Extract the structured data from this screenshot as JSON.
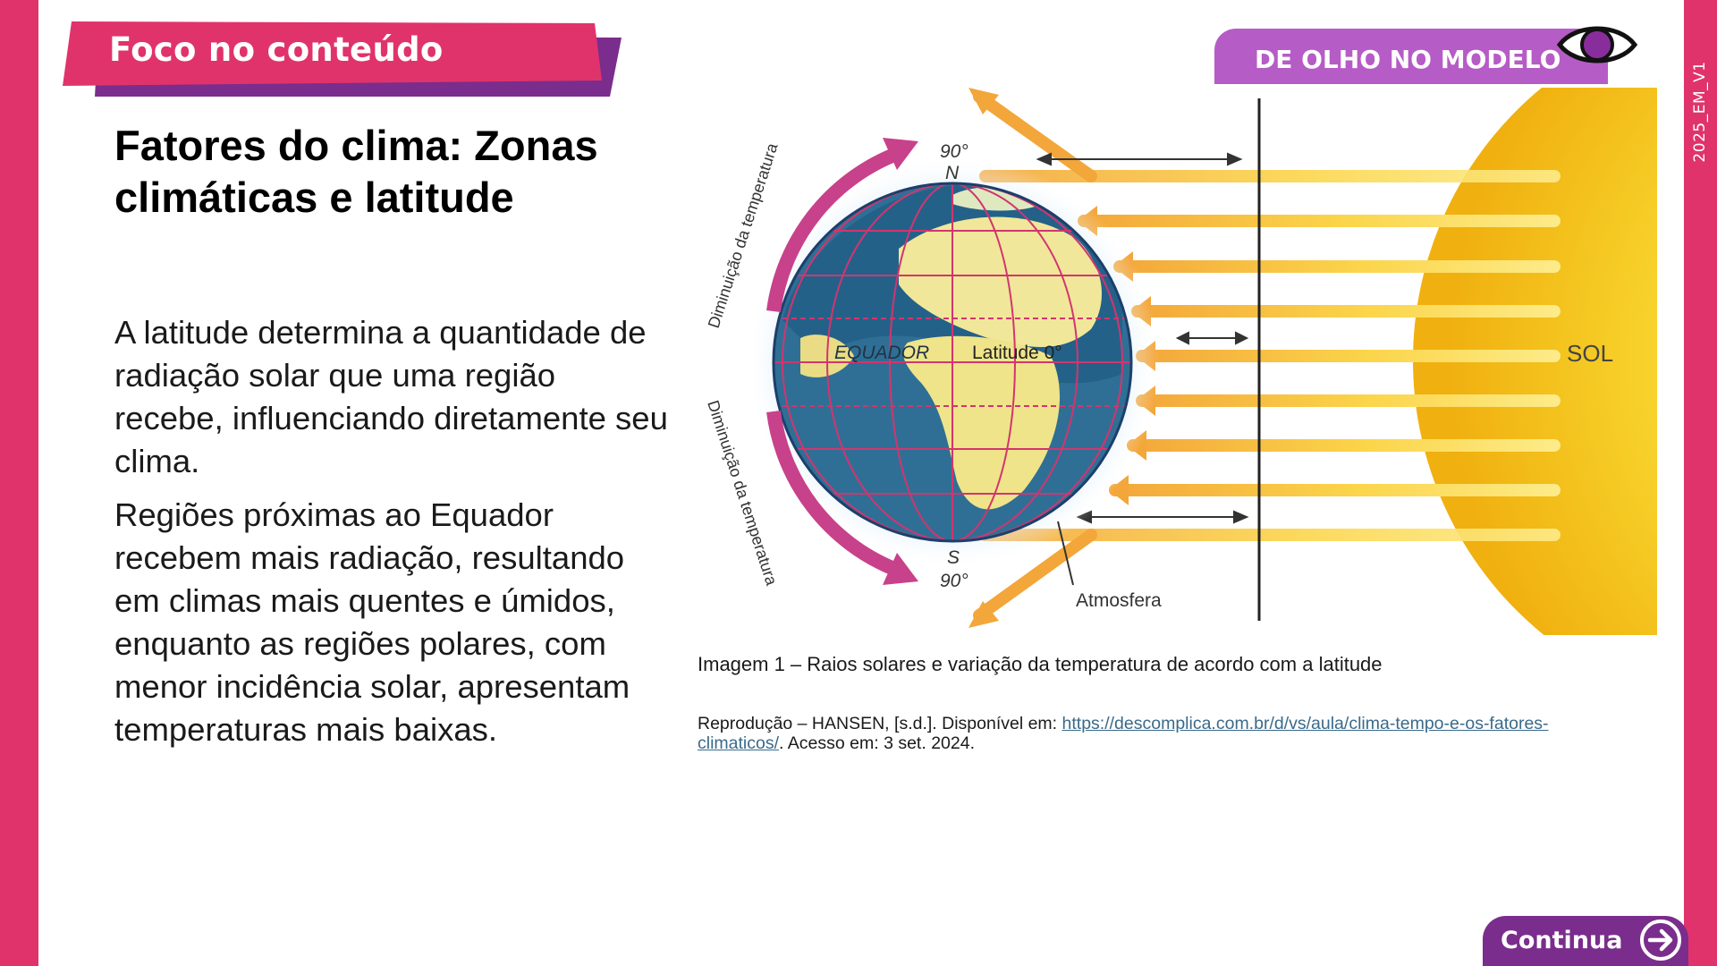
{
  "side_code": "2025_EM_V1",
  "banner": {
    "label": "Foco no conteúdo"
  },
  "model_tag": {
    "label": "DE OLHO NO MODELO",
    "icon": "eye-icon"
  },
  "title": "Fatores do clima: Zonas climáticas e latitude",
  "paragraphs": [
    "A latitude determina a quantidade de radiação solar que uma região recebe, influenciando diretamente seu clima.",
    "Regiões próximas ao Equador recebem mais radiação, resultando em climas mais quentes e úmidos, enquanto as regiões polares, com menor incidência solar, apresentam temperaturas mais baixas."
  ],
  "figure": {
    "top_pole_deg": "90°",
    "top_pole": "N",
    "bottom_pole": "S",
    "bottom_pole_deg": "90°",
    "equator": "EQUADOR",
    "latitude": "Latitude 0°",
    "arc_upper": "Diminuição da temperatura",
    "arc_lower": "Diminuição da temperatura",
    "atmosphere": "Atmosfera",
    "sun": "SOL"
  },
  "caption": "Imagem 1 – Raios solares e variação da temperatura de acordo com a latitude",
  "source": {
    "prefix": "Reprodução – HANSEN, [s.d.]. Disponível em: ",
    "link": "https://descomplica.com.br/d/vs/aula/clima-tempo-e-os-fatores-climaticos/",
    "suffix": ". Acesso em: 3 set. 2024."
  },
  "continue_button": {
    "label": "Continua"
  },
  "colors": {
    "accent_pink": "#e0336b",
    "purple": "#7a2d8c",
    "lilac": "#b65cc6",
    "sun_yellow": "#f6c818",
    "ray_orange": "#f3a63a"
  }
}
